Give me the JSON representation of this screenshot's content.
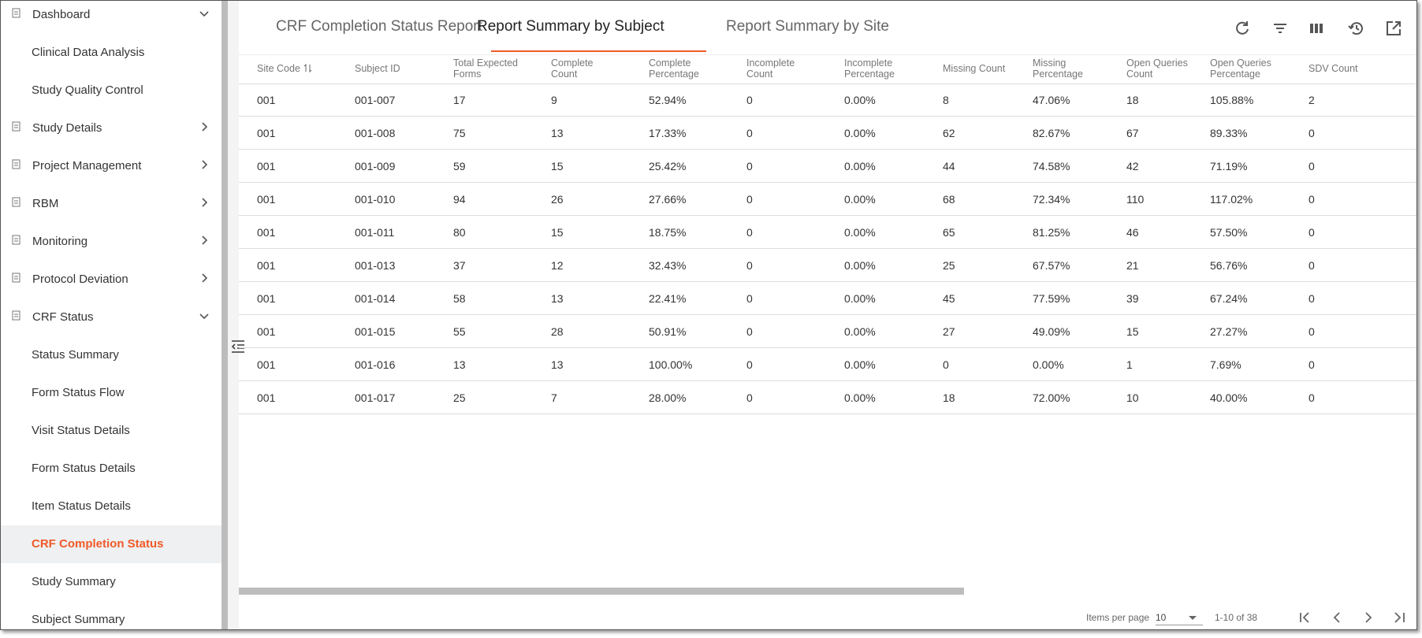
{
  "sidebar": {
    "groups": [
      {
        "label": "Dashboard",
        "expanded": true,
        "children": [
          {
            "label": "Clinical Data Analysis",
            "active": false
          },
          {
            "label": "Study Quality Control",
            "active": false
          }
        ]
      },
      {
        "label": "Study Details",
        "expanded": false,
        "children": []
      },
      {
        "label": "Project Management",
        "expanded": false,
        "children": []
      },
      {
        "label": "RBM",
        "expanded": false,
        "children": []
      },
      {
        "label": "Monitoring",
        "expanded": false,
        "children": []
      },
      {
        "label": "Protocol Deviation",
        "expanded": false,
        "children": []
      },
      {
        "label": "CRF Status",
        "expanded": true,
        "children": [
          {
            "label": "Status Summary",
            "active": false
          },
          {
            "label": "Form Status Flow",
            "active": false
          },
          {
            "label": "Visit Status Details",
            "active": false
          },
          {
            "label": "Form Status Details",
            "active": false
          },
          {
            "label": "Item Status Details",
            "active": false
          },
          {
            "label": "CRF Completion Status",
            "active": true
          },
          {
            "label": "Study Summary",
            "active": false
          },
          {
            "label": "Subject Summary",
            "active": false
          }
        ]
      }
    ]
  },
  "tabs": {
    "items": [
      "CRF Completion Status Report",
      "Report Summary by Subject",
      "Report Summary by Site"
    ],
    "active": 1
  },
  "table": {
    "columns": [
      "Site Code",
      "Subject ID",
      "Total Expected Forms",
      "Complete Count",
      "Complete Percentage",
      "Incomplete Count",
      "Incomplete Percentage",
      "Missing Count",
      "Missing Percentage",
      "Open Queries Count",
      "Open Queries Percentage",
      "SDV Count"
    ],
    "rows": [
      [
        "001",
        "001-007",
        "17",
        "9",
        "52.94%",
        "0",
        "0.00%",
        "8",
        "47.06%",
        "18",
        "105.88%",
        "2"
      ],
      [
        "001",
        "001-008",
        "75",
        "13",
        "17.33%",
        "0",
        "0.00%",
        "62",
        "82.67%",
        "67",
        "89.33%",
        "0"
      ],
      [
        "001",
        "001-009",
        "59",
        "15",
        "25.42%",
        "0",
        "0.00%",
        "44",
        "74.58%",
        "42",
        "71.19%",
        "0"
      ],
      [
        "001",
        "001-010",
        "94",
        "26",
        "27.66%",
        "0",
        "0.00%",
        "68",
        "72.34%",
        "110",
        "117.02%",
        "0"
      ],
      [
        "001",
        "001-011",
        "80",
        "15",
        "18.75%",
        "0",
        "0.00%",
        "65",
        "81.25%",
        "46",
        "57.50%",
        "0"
      ],
      [
        "001",
        "001-013",
        "37",
        "12",
        "32.43%",
        "0",
        "0.00%",
        "25",
        "67.57%",
        "21",
        "56.76%",
        "0"
      ],
      [
        "001",
        "001-014",
        "58",
        "13",
        "22.41%",
        "0",
        "0.00%",
        "45",
        "77.59%",
        "39",
        "67.24%",
        "0"
      ],
      [
        "001",
        "001-015",
        "55",
        "28",
        "50.91%",
        "0",
        "0.00%",
        "27",
        "49.09%",
        "15",
        "27.27%",
        "0"
      ],
      [
        "001",
        "001-016",
        "13",
        "13",
        "100.00%",
        "0",
        "0.00%",
        "0",
        "0.00%",
        "1",
        "7.69%",
        "0"
      ],
      [
        "001",
        "001-017",
        "25",
        "7",
        "28.00%",
        "0",
        "0.00%",
        "18",
        "72.00%",
        "10",
        "40.00%",
        "0"
      ]
    ]
  },
  "pagination": {
    "items_per_page_label": "Items per page",
    "page_size": "10",
    "range": "1-10 of 38"
  }
}
